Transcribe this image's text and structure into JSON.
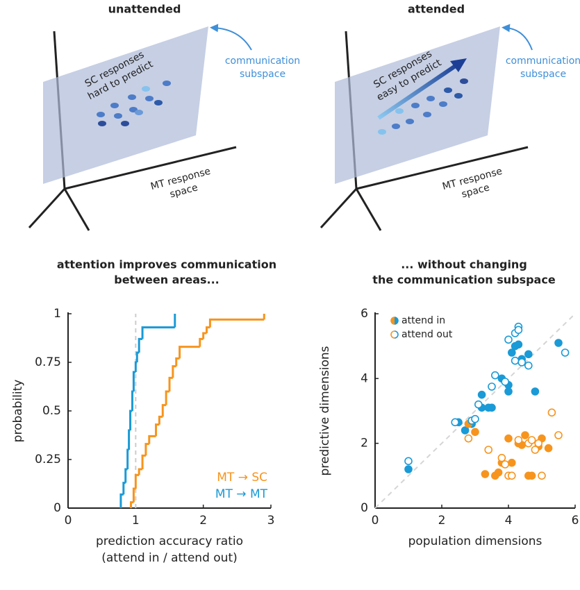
{
  "diagrams": [
    {
      "title": "unattended",
      "plane_label": [
        "SC responses",
        "hard to predict"
      ],
      "subspace_label": [
        "communication",
        "subspace"
      ],
      "space_label": [
        "MT response",
        "space"
      ]
    },
    {
      "title": "attended",
      "plane_label": [
        "SC responses",
        "easy to predict"
      ],
      "subspace_label": [
        "communication",
        "subspace"
      ],
      "space_label": [
        "MT response",
        "space"
      ]
    }
  ],
  "chart_data": [
    {
      "type": "ecdf",
      "title": [
        "attention improves communication",
        "between areas..."
      ],
      "x_label": [
        "prediction accuracy ratio",
        "(attend in / attend out)"
      ],
      "y_label": "probability",
      "xlim": [
        0,
        3
      ],
      "ylim": [
        0,
        1
      ],
      "xticks": [
        0,
        1,
        2,
        3
      ],
      "yticks": [
        0,
        0.25,
        0.5,
        0.75,
        1
      ],
      "reference_x": 1,
      "series": [
        {
          "name": "MT → SC",
          "color": "#f7941d",
          "x": [
            0.93,
            0.97,
            1.0,
            1.05,
            1.1,
            1.15,
            1.2,
            1.3,
            1.35,
            1.4,
            1.45,
            1.5,
            1.55,
            1.6,
            1.65,
            1.95,
            2.0,
            2.05,
            2.1,
            2.9
          ],
          "values": [
            0.03,
            0.1,
            0.17,
            0.2,
            0.27,
            0.33,
            0.37,
            0.43,
            0.47,
            0.53,
            0.6,
            0.67,
            0.73,
            0.77,
            0.83,
            0.87,
            0.9,
            0.93,
            0.97,
            1.0
          ]
        },
        {
          "name": "MT → MT",
          "color": "#1a9ad6",
          "x": [
            0.78,
            0.82,
            0.85,
            0.88,
            0.9,
            0.92,
            0.95,
            0.97,
            1.0,
            1.02,
            1.05,
            1.1,
            1.58
          ],
          "values": [
            0.07,
            0.13,
            0.2,
            0.3,
            0.4,
            0.5,
            0.6,
            0.7,
            0.75,
            0.8,
            0.87,
            0.93,
            1.0
          ]
        }
      ]
    },
    {
      "type": "scatter",
      "title": [
        "... without changing",
        "the communication subspace"
      ],
      "x_label": "population dimensions",
      "y_label": "predictive dimensions",
      "xlim": [
        0,
        6
      ],
      "ylim": [
        0,
        6
      ],
      "xticks": [
        0,
        2,
        4,
        6
      ],
      "yticks": [
        0,
        2,
        4,
        6
      ],
      "identity_line": true,
      "series": [
        {
          "name": "attend in",
          "filled": true,
          "groups": [
            {
              "color": "#1a9ad6",
              "x": [
                1.0,
                2.5,
                2.7,
                3.2,
                3.2,
                3.4,
                3.5,
                3.8,
                4.0,
                4.0,
                4.1,
                4.2,
                4.3,
                4.4,
                4.6,
                4.8,
                5.5,
                2.9
              ],
              "values": [
                1.2,
                2.65,
                2.4,
                3.5,
                3.1,
                3.1,
                3.1,
                4.0,
                3.6,
                3.8,
                4.8,
                5.0,
                5.05,
                4.6,
                4.75,
                3.6,
                5.1,
                2.6
              ]
            },
            {
              "color": "#f7941d",
              "x": [
                2.8,
                3.0,
                3.3,
                3.6,
                3.7,
                3.8,
                4.1,
                4.0,
                4.3,
                4.5,
                4.6,
                4.7,
                4.9,
                5.0,
                5.2,
                4.4
              ],
              "values": [
                2.6,
                2.35,
                1.05,
                1.0,
                1.1,
                1.4,
                1.4,
                2.15,
                2.0,
                2.25,
                1.0,
                1.0,
                1.9,
                2.15,
                1.85,
                1.95
              ]
            }
          ]
        },
        {
          "name": "attend out",
          "filled": false,
          "groups": [
            {
              "color": "#1a9ad6",
              "x": [
                1.0,
                2.4,
                2.9,
                3.0,
                3.1,
                3.5,
                3.6,
                3.9,
                4.0,
                4.2,
                4.3,
                4.3,
                4.2,
                4.4,
                4.6,
                5.7
              ],
              "values": [
                1.45,
                2.65,
                2.7,
                2.75,
                3.2,
                3.75,
                4.1,
                3.9,
                5.2,
                5.4,
                5.6,
                5.5,
                4.55,
                4.5,
                4.4,
                4.8
              ]
            },
            {
              "color": "#f7941d",
              "x": [
                2.8,
                3.4,
                3.8,
                3.9,
                4.0,
                4.1,
                4.3,
                4.6,
                4.7,
                4.8,
                5.0,
                5.3,
                5.5,
                4.9
              ],
              "values": [
                2.15,
                1.8,
                1.55,
                1.35,
                1.0,
                1.0,
                2.1,
                2.0,
                2.1,
                1.8,
                1.0,
                2.95,
                2.25,
                2.0
              ]
            }
          ]
        }
      ]
    }
  ]
}
